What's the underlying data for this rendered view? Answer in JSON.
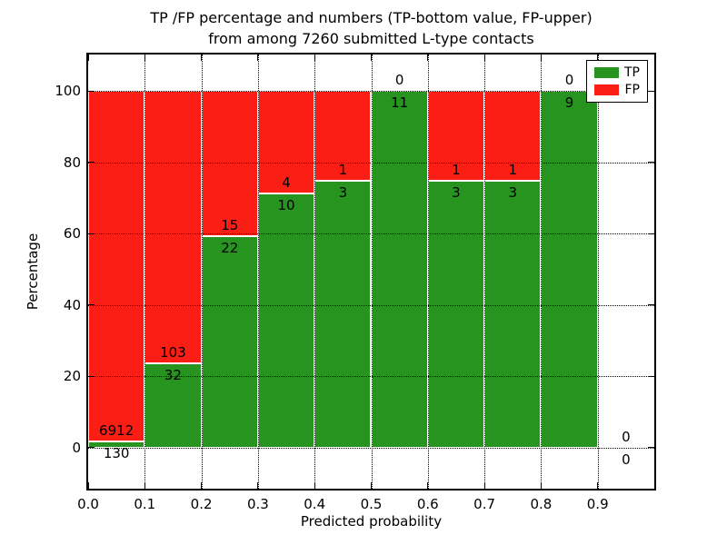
{
  "chart_data": {
    "type": "bar",
    "stacked": true,
    "normalized_to_100_percent": true,
    "title_line1": "TP /FP percentage and numbers (TP-bottom value, FP-upper)",
    "title_line2": "from among 7260 submitted L-type contacts",
    "xlabel": "Predicted probability",
    "ylabel": "Percentage",
    "total_contacts": 7260,
    "bin_edges": [
      0.0,
      0.1,
      0.2,
      0.3,
      0.4,
      0.5,
      0.6,
      0.7,
      0.8,
      0.9,
      1.0
    ],
    "series": [
      {
        "name": "TP",
        "color": "#289420",
        "counts": [
          130,
          32,
          22,
          10,
          3,
          11,
          3,
          3,
          9,
          0
        ],
        "percent": [
          1.85,
          23.7,
          59.46,
          71.43,
          75.0,
          100.0,
          75.0,
          75.0,
          100.0,
          null
        ]
      },
      {
        "name": "FP",
        "color": "#fb1e14",
        "counts": [
          6912,
          103,
          15,
          4,
          1,
          0,
          1,
          1,
          0,
          0
        ],
        "percent": [
          98.15,
          76.3,
          40.54,
          28.57,
          25.0,
          0.0,
          25.0,
          25.0,
          0.0,
          null
        ]
      }
    ],
    "x_ticks": [
      0.0,
      0.1,
      0.2,
      0.3,
      0.4,
      0.5,
      0.6,
      0.7,
      0.8,
      0.9
    ],
    "x_tick_labels": [
      "0.0",
      "0.1",
      "0.2",
      "0.3",
      "0.4",
      "0.5",
      "0.6",
      "0.7",
      "0.8",
      "0.9"
    ],
    "y_ticks": [
      0,
      20,
      40,
      60,
      80,
      100
    ],
    "y_tick_labels": [
      "0",
      "20",
      "40",
      "60",
      "80",
      "100"
    ],
    "xlim": [
      0.0,
      1.0
    ],
    "ylim": [
      -11.5,
      110.3
    ],
    "grid": true,
    "grid_style": "dotted",
    "legend_position": "upper right",
    "bar_edge_color": "#ffffff"
  },
  "legend": {
    "items": [
      {
        "label": "TP",
        "color": "#289420"
      },
      {
        "label": "FP",
        "color": "#fb1e14"
      }
    ]
  }
}
